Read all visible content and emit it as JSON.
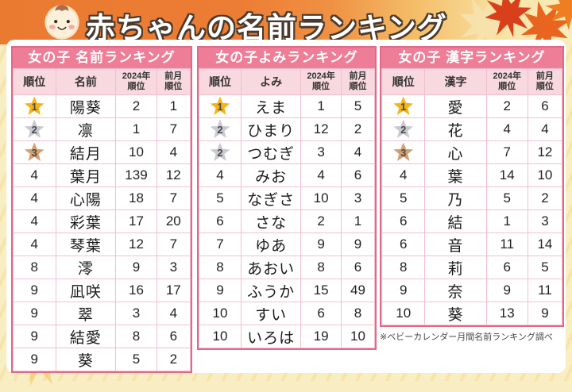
{
  "title": {
    "text": "赤ちゃんの名前ランキング"
  },
  "footnote": "※ベビーカレンダー月間名前ランキング調べ",
  "colors": {
    "header_orange": "#ec7d34",
    "header_yellow": "#f9edbd",
    "table_title_pink": "#ee7e97",
    "table_header_pink": "#f8d9e0",
    "table_border_pink": "#e0698a",
    "grid_pink": "#f3bfcc",
    "gold_star": "#f5b31a",
    "silver_star": "#c9c9d1",
    "bronze_star": "#d3a072"
  },
  "tables": [
    {
      "key": "name-ranking",
      "title": "女の子 名前ランキング",
      "columns": [
        {
          "label": "順位"
        },
        {
          "label": "名前"
        },
        {
          "label": "2024年",
          "sub": "順位"
        },
        {
          "label": "前月",
          "sub": "順位"
        }
      ],
      "rows": [
        {
          "rank": "1",
          "medal": "gold",
          "name": "陽葵",
          "rank_2024": "2",
          "prev_month": "1"
        },
        {
          "rank": "2",
          "medal": "silver",
          "name": "凛",
          "rank_2024": "1",
          "prev_month": "7"
        },
        {
          "rank": "3",
          "medal": "bronze",
          "name": "結月",
          "rank_2024": "10",
          "prev_month": "4"
        },
        {
          "rank": "4",
          "medal": "",
          "name": "葉月",
          "rank_2024": "139",
          "prev_month": "12"
        },
        {
          "rank": "4",
          "medal": "",
          "name": "心陽",
          "rank_2024": "18",
          "prev_month": "7"
        },
        {
          "rank": "4",
          "medal": "",
          "name": "彩葉",
          "rank_2024": "17",
          "prev_month": "20"
        },
        {
          "rank": "4",
          "medal": "",
          "name": "琴葉",
          "rank_2024": "12",
          "prev_month": "7"
        },
        {
          "rank": "8",
          "medal": "",
          "name": "澪",
          "rank_2024": "9",
          "prev_month": "3"
        },
        {
          "rank": "9",
          "medal": "",
          "name": "凪咲",
          "rank_2024": "16",
          "prev_month": "17"
        },
        {
          "rank": "9",
          "medal": "",
          "name": "翠",
          "rank_2024": "3",
          "prev_month": "4"
        },
        {
          "rank": "9",
          "medal": "",
          "name": "結愛",
          "rank_2024": "8",
          "prev_month": "6"
        },
        {
          "rank": "9",
          "medal": "",
          "name": "葵",
          "rank_2024": "5",
          "prev_month": "2"
        }
      ]
    },
    {
      "key": "yomi-ranking",
      "title": "女の子よみランキング",
      "columns": [
        {
          "label": "順位"
        },
        {
          "label": "よみ"
        },
        {
          "label": "2024年",
          "sub": "順位"
        },
        {
          "label": "前月",
          "sub": "順位"
        }
      ],
      "rows": [
        {
          "rank": "1",
          "medal": "gold",
          "name": "えま",
          "rank_2024": "1",
          "prev_month": "5"
        },
        {
          "rank": "2",
          "medal": "silver",
          "name": "ひまり",
          "rank_2024": "12",
          "prev_month": "2"
        },
        {
          "rank": "2",
          "medal": "silver",
          "name": "つむぎ",
          "rank_2024": "3",
          "prev_month": "4"
        },
        {
          "rank": "4",
          "medal": "",
          "name": "みお",
          "rank_2024": "4",
          "prev_month": "6"
        },
        {
          "rank": "5",
          "medal": "",
          "name": "なぎさ",
          "rank_2024": "10",
          "prev_month": "3"
        },
        {
          "rank": "6",
          "medal": "",
          "name": "さな",
          "rank_2024": "2",
          "prev_month": "1"
        },
        {
          "rank": "7",
          "medal": "",
          "name": "ゆあ",
          "rank_2024": "9",
          "prev_month": "9"
        },
        {
          "rank": "8",
          "medal": "",
          "name": "あおい",
          "rank_2024": "8",
          "prev_month": "6"
        },
        {
          "rank": "9",
          "medal": "",
          "name": "ふうか",
          "rank_2024": "15",
          "prev_month": "49"
        },
        {
          "rank": "10",
          "medal": "",
          "name": "すい",
          "rank_2024": "6",
          "prev_month": "8"
        },
        {
          "rank": "10",
          "medal": "",
          "name": "いろは",
          "rank_2024": "19",
          "prev_month": "10"
        }
      ]
    },
    {
      "key": "kanji-ranking",
      "title": "女の子 漢字ランキング",
      "columns": [
        {
          "label": "順位"
        },
        {
          "label": "漢字"
        },
        {
          "label": "2024年",
          "sub": "順位"
        },
        {
          "label": "前月",
          "sub": "順位"
        }
      ],
      "rows": [
        {
          "rank": "1",
          "medal": "gold",
          "name": "愛",
          "rank_2024": "2",
          "prev_month": "6"
        },
        {
          "rank": "2",
          "medal": "silver",
          "name": "花",
          "rank_2024": "4",
          "prev_month": "4"
        },
        {
          "rank": "3",
          "medal": "bronze",
          "name": "心",
          "rank_2024": "7",
          "prev_month": "12"
        },
        {
          "rank": "4",
          "medal": "",
          "name": "葉",
          "rank_2024": "14",
          "prev_month": "10"
        },
        {
          "rank": "5",
          "medal": "",
          "name": "乃",
          "rank_2024": "5",
          "prev_month": "2"
        },
        {
          "rank": "6",
          "medal": "",
          "name": "結",
          "rank_2024": "1",
          "prev_month": "3"
        },
        {
          "rank": "6",
          "medal": "",
          "name": "音",
          "rank_2024": "11",
          "prev_month": "14"
        },
        {
          "rank": "8",
          "medal": "",
          "name": "莉",
          "rank_2024": "6",
          "prev_month": "5"
        },
        {
          "rank": "9",
          "medal": "",
          "name": "奈",
          "rank_2024": "9",
          "prev_month": "11"
        },
        {
          "rank": "10",
          "medal": "",
          "name": "葵",
          "rank_2024": "13",
          "prev_month": "9"
        }
      ]
    }
  ]
}
